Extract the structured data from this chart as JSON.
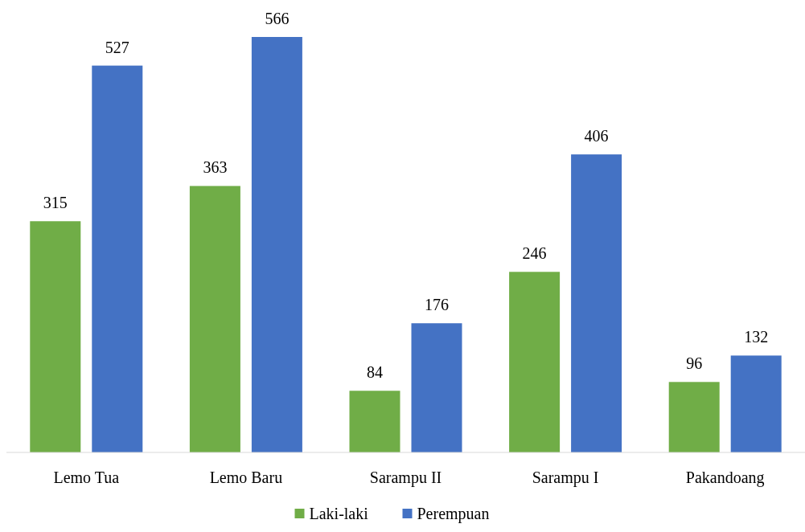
{
  "chart_data": {
    "type": "bar",
    "categories": [
      "Lemo Tua",
      "Lemo Baru",
      "Sarampu II",
      "Sarampu I",
      "Pakandoang"
    ],
    "series": [
      {
        "name": "Laki-laki",
        "color": "#70ad47",
        "values": [
          315,
          363,
          84,
          246,
          96
        ]
      },
      {
        "name": "Perempuan",
        "color": "#4472c4",
        "values": [
          527,
          566,
          176,
          406,
          132
        ]
      }
    ],
    "data_labels": true,
    "legend": "bottom"
  }
}
